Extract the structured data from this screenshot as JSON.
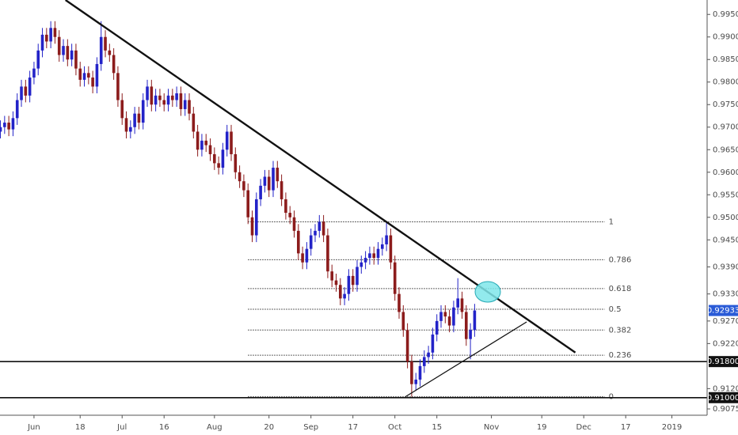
{
  "chart_data": {
    "type": "candlestick",
    "up_color": "#2323c8",
    "down_color": "#8c1c1c",
    "x": [
      -8,
      -7,
      -6,
      -5,
      -4,
      -3,
      -2,
      -1,
      0,
      1,
      2,
      3,
      4,
      5,
      6,
      7,
      8,
      9,
      10,
      11,
      12,
      13,
      14,
      15,
      16,
      17,
      18,
      19,
      20,
      21,
      22,
      23,
      24,
      25,
      26,
      27,
      28,
      29,
      30,
      31,
      32,
      33,
      34,
      35,
      36,
      37,
      38,
      39,
      40,
      41,
      42,
      43,
      44,
      45,
      46,
      47,
      48,
      49,
      50,
      51,
      52,
      53,
      54,
      55,
      56,
      57,
      58,
      59,
      60,
      61,
      62,
      63,
      64,
      65,
      66,
      67,
      68,
      69,
      70,
      71,
      72,
      73,
      74,
      75,
      76,
      77,
      78,
      79,
      80,
      81,
      82,
      83,
      84,
      85,
      86,
      87,
      88,
      89,
      90,
      91,
      92,
      93,
      94,
      95,
      96,
      97,
      98,
      99,
      100,
      101,
      102,
      103,
      104,
      105
    ],
    "open": [
      0.969,
      0.97,
      0.971,
      0.9695,
      0.972,
      0.976,
      0.979,
      0.977,
      0.981,
      0.983,
      0.987,
      0.9905,
      0.989,
      0.992,
      0.99,
      0.986,
      0.988,
      0.985,
      0.987,
      0.983,
      0.9805,
      0.982,
      0.981,
      0.979,
      0.984,
      0.99,
      0.987,
      0.986,
      0.982,
      0.976,
      0.972,
      0.969,
      0.97,
      0.973,
      0.971,
      0.976,
      0.979,
      0.975,
      0.977,
      0.976,
      0.975,
      0.977,
      0.976,
      0.9775,
      0.974,
      0.976,
      0.973,
      0.969,
      0.965,
      0.967,
      0.966,
      0.964,
      0.962,
      0.961,
      0.965,
      0.969,
      0.964,
      0.96,
      0.958,
      0.956,
      0.95,
      0.946,
      0.954,
      0.957,
      0.959,
      0.956,
      0.961,
      0.958,
      0.954,
      0.951,
      0.95,
      0.947,
      0.942,
      0.94,
      0.943,
      0.946,
      0.947,
      0.949,
      0.946,
      0.938,
      0.936,
      0.935,
      0.932,
      0.933,
      0.937,
      0.935,
      0.939,
      0.94,
      0.941,
      0.942,
      0.941,
      0.943,
      0.944,
      0.946,
      0.94,
      0.933,
      0.929,
      0.925,
      0.918,
      0.913,
      0.914,
      0.917,
      0.919,
      0.92,
      0.924,
      0.927,
      0.929,
      0.928,
      0.926,
      0.93,
      0.932,
      0.929,
      0.923,
      0.925
    ],
    "high": [
      0.9715,
      0.9725,
      0.9725,
      0.9735,
      0.9775,
      0.9805,
      0.9805,
      0.9825,
      0.9845,
      0.9885,
      0.992,
      0.992,
      0.9935,
      0.9935,
      0.9915,
      0.9895,
      0.9895,
      0.9885,
      0.9885,
      0.9845,
      0.9835,
      0.9835,
      0.9825,
      0.9855,
      0.9935,
      0.9915,
      0.9885,
      0.9875,
      0.9835,
      0.9775,
      0.9735,
      0.9715,
      0.9745,
      0.9745,
      0.9775,
      0.9805,
      0.9805,
      0.9785,
      0.9785,
      0.9775,
      0.9785,
      0.9785,
      0.979,
      0.979,
      0.9775,
      0.9775,
      0.9745,
      0.9705,
      0.9685,
      0.9685,
      0.9675,
      0.9655,
      0.9635,
      0.9665,
      0.9705,
      0.9705,
      0.9655,
      0.9615,
      0.9595,
      0.9575,
      0.9515,
      0.9555,
      0.9585,
      0.9605,
      0.9605,
      0.9625,
      0.9625,
      0.9595,
      0.9555,
      0.9525,
      0.9515,
      0.9485,
      0.9435,
      0.9445,
      0.9475,
      0.9485,
      0.9505,
      0.9505,
      0.9475,
      0.9395,
      0.9375,
      0.9365,
      0.9345,
      0.9385,
      0.9385,
      0.9405,
      0.9415,
      0.9425,
      0.9435,
      0.9435,
      0.9445,
      0.9455,
      0.949,
      0.9475,
      0.9415,
      0.9345,
      0.9305,
      0.9265,
      0.9195,
      0.9155,
      0.9185,
      0.9205,
      0.9215,
      0.9255,
      0.9285,
      0.9305,
      0.9305,
      0.9295,
      0.9315,
      0.9365,
      0.9335,
      0.9305,
      0.9265,
      0.9308
    ],
    "low": [
      0.9675,
      0.9685,
      0.968,
      0.968,
      0.9705,
      0.9745,
      0.9755,
      0.9755,
      0.9795,
      0.9815,
      0.9855,
      0.9875,
      0.9875,
      0.9885,
      0.9845,
      0.9845,
      0.9835,
      0.9835,
      0.9815,
      0.979,
      0.979,
      0.9795,
      0.9775,
      0.9775,
      0.9825,
      0.9855,
      0.9845,
      0.9805,
      0.9745,
      0.9705,
      0.9675,
      0.9675,
      0.9685,
      0.9695,
      0.9695,
      0.9745,
      0.9735,
      0.9735,
      0.9745,
      0.9735,
      0.9735,
      0.9745,
      0.9745,
      0.9725,
      0.9725,
      0.9715,
      0.9675,
      0.9635,
      0.9635,
      0.9645,
      0.9625,
      0.9605,
      0.9595,
      0.9595,
      0.9635,
      0.9625,
      0.9585,
      0.9565,
      0.9545,
      0.9485,
      0.9445,
      0.9445,
      0.9525,
      0.9555,
      0.9545,
      0.9545,
      0.9565,
      0.9525,
      0.9495,
      0.9485,
      0.9455,
      0.9405,
      0.9385,
      0.9385,
      0.9415,
      0.9445,
      0.9455,
      0.9445,
      0.9365,
      0.9345,
      0.9335,
      0.9305,
      0.9305,
      0.9315,
      0.9335,
      0.9335,
      0.9375,
      0.9385,
      0.9395,
      0.9395,
      0.9395,
      0.9415,
      0.9425,
      0.9385,
      0.9315,
      0.9275,
      0.9235,
      0.9165,
      0.9102,
      0.9115,
      0.9125,
      0.9155,
      0.9175,
      0.9185,
      0.9225,
      0.9255,
      0.9265,
      0.9245,
      0.9245,
      0.9285,
      0.9275,
      0.9215,
      0.9185,
      0.9235
    ],
    "close": [
      0.97,
      0.971,
      0.9695,
      0.972,
      0.976,
      0.979,
      0.977,
      0.981,
      0.983,
      0.987,
      0.9905,
      0.989,
      0.992,
      0.99,
      0.986,
      0.988,
      0.985,
      0.987,
      0.983,
      0.9805,
      0.982,
      0.981,
      0.979,
      0.984,
      0.99,
      0.987,
      0.986,
      0.982,
      0.976,
      0.972,
      0.969,
      0.97,
      0.973,
      0.971,
      0.976,
      0.979,
      0.975,
      0.977,
      0.976,
      0.975,
      0.977,
      0.976,
      0.9775,
      0.974,
      0.976,
      0.973,
      0.969,
      0.965,
      0.967,
      0.966,
      0.964,
      0.962,
      0.961,
      0.965,
      0.969,
      0.964,
      0.96,
      0.958,
      0.956,
      0.95,
      0.946,
      0.954,
      0.957,
      0.959,
      0.956,
      0.961,
      0.958,
      0.954,
      0.951,
      0.95,
      0.947,
      0.942,
      0.94,
      0.943,
      0.946,
      0.947,
      0.949,
      0.946,
      0.938,
      0.936,
      0.935,
      0.932,
      0.933,
      0.937,
      0.935,
      0.939,
      0.94,
      0.941,
      0.942,
      0.941,
      0.943,
      0.944,
      0.946,
      0.94,
      0.933,
      0.929,
      0.925,
      0.918,
      0.913,
      0.914,
      0.917,
      0.919,
      0.92,
      0.924,
      0.927,
      0.929,
      0.928,
      0.926,
      0.93,
      0.932,
      0.929,
      0.923,
      0.925,
      0.92933
    ],
    "xlim": [
      -8.1,
      160.4
    ],
    "xticks": [
      {
        "value": 0,
        "label": "Jun"
      },
      {
        "value": 11,
        "label": "18"
      },
      {
        "value": 21,
        "label": "Jul"
      },
      {
        "value": 31,
        "label": "16"
      },
      {
        "value": 43,
        "label": "Aug"
      },
      {
        "value": 56,
        "label": "20"
      },
      {
        "value": 66,
        "label": "Sep"
      },
      {
        "value": 76,
        "label": "17"
      },
      {
        "value": 86,
        "label": "Oct"
      },
      {
        "value": 96,
        "label": "15"
      },
      {
        "value": 109,
        "label": "Nov"
      },
      {
        "value": 121,
        "label": "19"
      },
      {
        "value": 131,
        "label": "Dec"
      },
      {
        "value": 141,
        "label": "17"
      },
      {
        "value": 152,
        "label": "2019"
      }
    ],
    "ylim": [
      0.9061,
      0.9982
    ],
    "yticks": [
      {
        "value": 0.995,
        "label": "0.99500"
      },
      {
        "value": 0.99,
        "label": "0.99000"
      },
      {
        "value": 0.985,
        "label": "0.98500"
      },
      {
        "value": 0.98,
        "label": "0.98000"
      },
      {
        "value": 0.975,
        "label": "0.97500"
      },
      {
        "value": 0.97,
        "label": "0.97000"
      },
      {
        "value": 0.965,
        "label": "0.96500"
      },
      {
        "value": 0.96,
        "label": "0.96000"
      },
      {
        "value": 0.955,
        "label": "0.95500"
      },
      {
        "value": 0.95,
        "label": "0.95000"
      },
      {
        "value": 0.945,
        "label": "0.94500"
      },
      {
        "value": 0.939,
        "label": "0.93900"
      },
      {
        "value": 0.933,
        "label": "0.93300"
      },
      {
        "value": 0.927,
        "label": "0.92700"
      },
      {
        "value": 0.922,
        "label": "0.92200"
      },
      {
        "value": 0.912,
        "label": "0.91200"
      },
      {
        "value": 0.9075,
        "label": "0.90750"
      }
    ],
    "trendlines": [
      {
        "x": [
          7.5,
          129
        ],
        "y": [
          0.9982,
          0.92
        ]
      },
      {
        "x": [
          88.5,
          117.4
        ],
        "y": [
          0.9102,
          0.9268
        ]
      }
    ],
    "horizontal_lines": [
      {
        "value": 0.918,
        "label": "0.91800"
      },
      {
        "value": 0.91,
        "label": "0.91000"
      }
    ],
    "last_price": {
      "value": 0.92933,
      "label": "0.92933"
    },
    "fibonacci": {
      "x": [
        51,
        136
      ],
      "levels": [
        {
          "ratio": 1,
          "value": 0.949
        },
        {
          "ratio": 0.786,
          "value": 0.9406
        },
        {
          "ratio": 0.618,
          "value": 0.9342
        },
        {
          "ratio": 0.5,
          "value": 0.9296
        },
        {
          "ratio": 0.382,
          "value": 0.925
        },
        {
          "ratio": 0.236,
          "value": 0.9194
        },
        {
          "ratio": 0,
          "value": 0.9102
        }
      ]
    }
  }
}
